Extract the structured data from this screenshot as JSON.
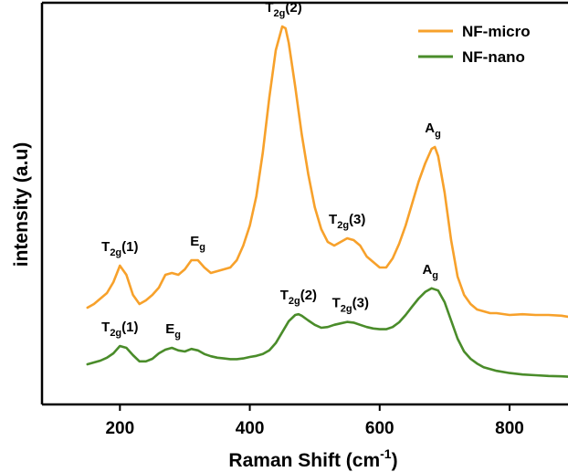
{
  "chart_data": {
    "type": "line",
    "title": "",
    "xlabel": "Raman Shift (cm",
    "xlabel_sup": "-1",
    "xlabel_close": ")",
    "ylabel": "intensity (a.u)",
    "xlim": [
      80,
      890
    ],
    "ylim": [
      0,
      1
    ],
    "x_ticks": [
      200,
      400,
      600,
      800
    ],
    "y_ticks_shown": false,
    "grid": false,
    "legend_position": "top-right",
    "series": [
      {
        "name": "NF-micro",
        "color": "#f7a12b",
        "x": [
          150,
          160,
          170,
          180,
          190,
          200,
          210,
          220,
          230,
          240,
          250,
          260,
          270,
          280,
          290,
          300,
          310,
          320,
          330,
          340,
          350,
          360,
          370,
          380,
          390,
          400,
          410,
          420,
          430,
          440,
          450,
          455,
          460,
          470,
          480,
          490,
          500,
          510,
          520,
          530,
          540,
          550,
          560,
          570,
          580,
          590,
          600,
          610,
          620,
          630,
          640,
          650,
          660,
          670,
          680,
          685,
          690,
          700,
          710,
          720,
          730,
          740,
          750,
          760,
          770,
          780,
          800,
          820,
          840,
          860,
          880,
          890
        ],
        "y": [
          0.215,
          0.225,
          0.24,
          0.255,
          0.285,
          0.33,
          0.305,
          0.25,
          0.225,
          0.235,
          0.25,
          0.27,
          0.305,
          0.31,
          0.305,
          0.32,
          0.345,
          0.345,
          0.325,
          0.31,
          0.315,
          0.32,
          0.325,
          0.345,
          0.385,
          0.44,
          0.52,
          0.64,
          0.79,
          0.92,
          0.985,
          0.98,
          0.94,
          0.82,
          0.69,
          0.58,
          0.49,
          0.43,
          0.395,
          0.385,
          0.395,
          0.405,
          0.4,
          0.385,
          0.355,
          0.34,
          0.325,
          0.325,
          0.35,
          0.39,
          0.44,
          0.5,
          0.56,
          0.61,
          0.65,
          0.655,
          0.63,
          0.53,
          0.4,
          0.3,
          0.25,
          0.225,
          0.21,
          0.205,
          0.2,
          0.2,
          0.195,
          0.197,
          0.195,
          0.195,
          0.193,
          0.19
        ],
        "peak_labels": [
          {
            "base": "T",
            "sub": "2g",
            "suffix": "(1)",
            "x": 200,
            "y": 0.33
          },
          {
            "base": "E",
            "sub": "g",
            "suffix": "",
            "x": 320,
            "y": 0.345
          },
          {
            "base": "T",
            "sub": "2g",
            "suffix": "(2)",
            "x": 452,
            "y": 0.985
          },
          {
            "base": "T",
            "sub": "2g",
            "suffix": "(3)",
            "x": 550,
            "y": 0.405
          },
          {
            "base": "A",
            "sub": "g",
            "suffix": "",
            "x": 682,
            "y": 0.655
          }
        ]
      },
      {
        "name": "NF-nano",
        "color": "#4a8c2a",
        "x": [
          150,
          160,
          170,
          180,
          190,
          200,
          210,
          220,
          230,
          240,
          250,
          260,
          270,
          280,
          290,
          300,
          310,
          320,
          330,
          340,
          350,
          360,
          370,
          380,
          390,
          400,
          410,
          420,
          430,
          440,
          450,
          460,
          470,
          475,
          480,
          490,
          500,
          510,
          520,
          530,
          540,
          550,
          560,
          570,
          580,
          590,
          600,
          610,
          620,
          630,
          640,
          650,
          660,
          670,
          680,
          690,
          700,
          710,
          720,
          730,
          740,
          750,
          760,
          780,
          800,
          820,
          840,
          860,
          880,
          890
        ],
        "y": [
          0.06,
          0.065,
          0.07,
          0.078,
          0.09,
          0.11,
          0.105,
          0.085,
          0.068,
          0.068,
          0.075,
          0.09,
          0.1,
          0.105,
          0.098,
          0.095,
          0.102,
          0.098,
          0.088,
          0.082,
          0.078,
          0.076,
          0.074,
          0.074,
          0.076,
          0.08,
          0.083,
          0.088,
          0.098,
          0.118,
          0.148,
          0.178,
          0.195,
          0.197,
          0.193,
          0.18,
          0.168,
          0.16,
          0.162,
          0.168,
          0.172,
          0.176,
          0.174,
          0.168,
          0.162,
          0.158,
          0.156,
          0.156,
          0.162,
          0.175,
          0.195,
          0.218,
          0.24,
          0.258,
          0.268,
          0.262,
          0.23,
          0.18,
          0.13,
          0.095,
          0.075,
          0.062,
          0.052,
          0.042,
          0.036,
          0.032,
          0.03,
          0.028,
          0.027,
          0.026
        ],
        "peak_labels": [
          {
            "base": "T",
            "sub": "2g",
            "suffix": "(1)",
            "x": 200,
            "y": 0.11
          },
          {
            "base": "E",
            "sub": "g",
            "suffix": "",
            "x": 282,
            "y": 0.105
          },
          {
            "base": "T",
            "sub": "2g",
            "suffix": "(2)",
            "x": 475,
            "y": 0.197
          },
          {
            "base": "T",
            "sub": "2g",
            "suffix": "(3)",
            "x": 555,
            "y": 0.176
          },
          {
            "base": "A",
            "sub": "g",
            "suffix": "",
            "x": 678,
            "y": 0.268
          }
        ]
      }
    ]
  }
}
